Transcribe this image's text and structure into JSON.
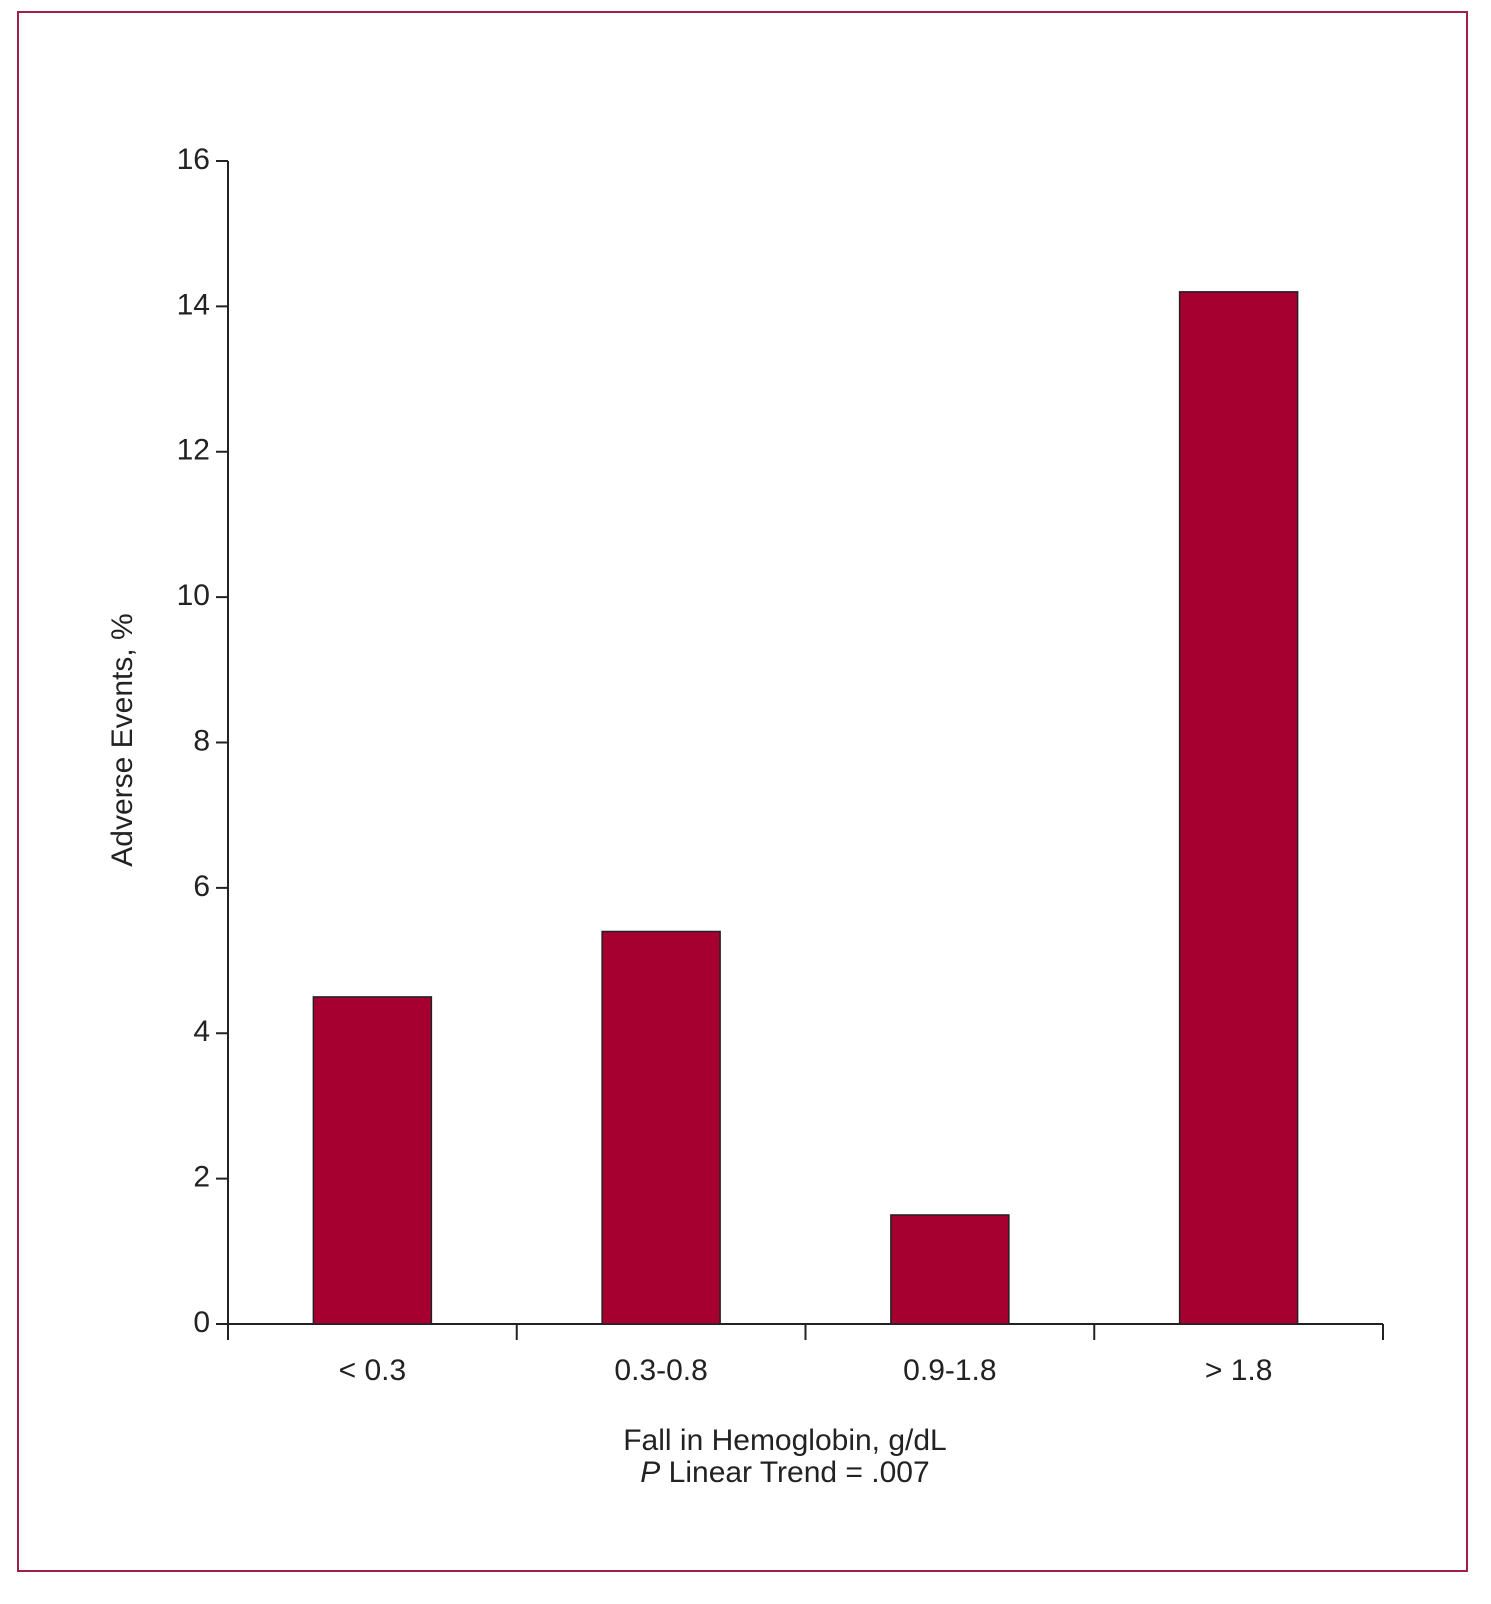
{
  "chart_data": {
    "type": "bar",
    "y_label": "Adverse Events, %",
    "x_label": "Fall in Hemoglobin, g/dL",
    "annotation_symbol": "P",
    "annotation": "Linear Trend = .007",
    "categories": [
      "< 0.3",
      "0.3-0.8",
      "0.9-1.8",
      "> 1.8"
    ],
    "values": [
      4.5,
      5.4,
      1.5,
      14.2
    ],
    "color": "#a50030",
    "ylim": [
      0,
      16
    ],
    "yticks": [
      0,
      2,
      4,
      6,
      8,
      10,
      12,
      14,
      16
    ],
    "grid": false
  }
}
